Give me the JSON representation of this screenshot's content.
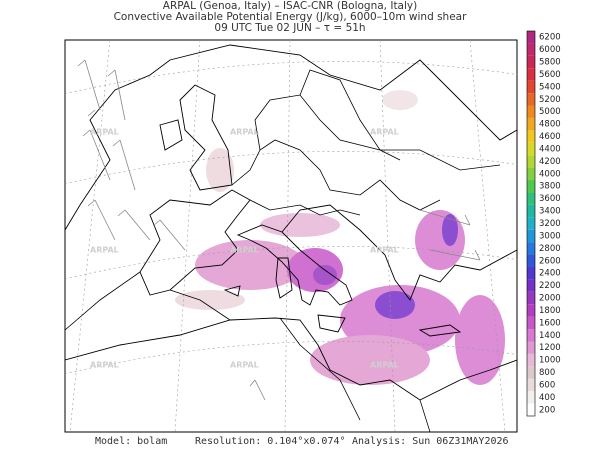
{
  "header": {
    "line1": "ARPAL (Genoa, Italy)  –  ISAC-CNR (Bologna, Italy)",
    "line2": "Convective Available Potential Energy (J/kg), 6000–10m wind shear",
    "line3": "09 UTC Tue 02 JUN  –  τ = 51h"
  },
  "watermark": "ARPAL",
  "colorbar": {
    "ticks": [
      200,
      400,
      600,
      800,
      1000,
      1200,
      1400,
      1600,
      1800,
      2000,
      2200,
      2400,
      2600,
      2800,
      3000,
      3200,
      3400,
      3600,
      3800,
      4000,
      4200,
      4400,
      4600,
      4800,
      5000,
      5200,
      5400,
      5600,
      5800,
      6000,
      6200
    ],
    "colors": [
      "#ffffff",
      "#f4eeee",
      "#e8dcdc",
      "#dccaca",
      "#e8b8d8",
      "#e098d0",
      "#d878d0",
      "#c858c8",
      "#b040c0",
      "#9838c0",
      "#7830c8",
      "#5038d0",
      "#3058d8",
      "#2878e0",
      "#2098d8",
      "#20b0c8",
      "#20b8a0",
      "#30c078",
      "#50c850",
      "#80d040",
      "#b0d830",
      "#d8d828",
      "#f0c820",
      "#f0a820",
      "#f08820",
      "#e86828",
      "#e04830",
      "#d83040",
      "#c82858",
      "#c02870",
      "#b02880"
    ]
  },
  "footer": {
    "model": "Model: bolam",
    "resolution": "Resolution: 0.104°x0.074°",
    "analysis": "Analysis: Sun 06Z31MAY2026"
  }
}
